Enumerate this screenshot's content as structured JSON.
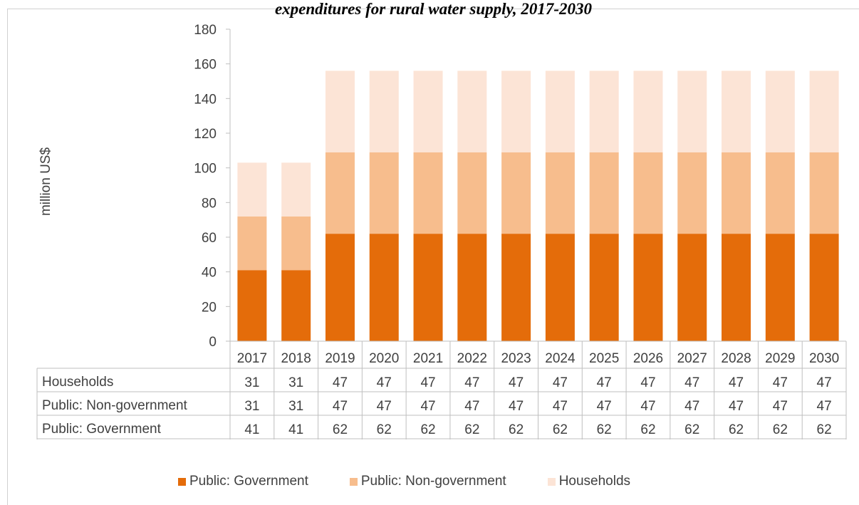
{
  "title": "expenditures for rural water supply, 2017-2030",
  "chart_data": {
    "type": "bar",
    "stacked": true,
    "title": "expenditures for rural water supply, 2017-2030",
    "xlabel": "",
    "ylabel": "million US$",
    "ylim": [
      0,
      180
    ],
    "yticks": [
      0,
      20,
      40,
      60,
      80,
      100,
      120,
      140,
      160,
      180
    ],
    "categories": [
      "2017",
      "2018",
      "2019",
      "2020",
      "2021",
      "2022",
      "2023",
      "2024",
      "2025",
      "2026",
      "2027",
      "2028",
      "2029",
      "2030"
    ],
    "series": [
      {
        "name": "Public: Government",
        "color": "#e46c0a",
        "values": [
          41,
          41,
          62,
          62,
          62,
          62,
          62,
          62,
          62,
          62,
          62,
          62,
          62,
          62
        ]
      },
      {
        "name": "Public: Non-government",
        "color": "#f7bd8d",
        "values": [
          31,
          31,
          47,
          47,
          47,
          47,
          47,
          47,
          47,
          47,
          47,
          47,
          47,
          47
        ]
      },
      {
        "name": "Households",
        "color": "#fce4d6",
        "values": [
          31,
          31,
          47,
          47,
          47,
          47,
          47,
          47,
          47,
          47,
          47,
          47,
          47,
          47
        ]
      }
    ],
    "table_row_order": [
      "Households",
      "Public: Non-government",
      "Public: Government"
    ],
    "legend_position": "bottom",
    "grid": false
  }
}
